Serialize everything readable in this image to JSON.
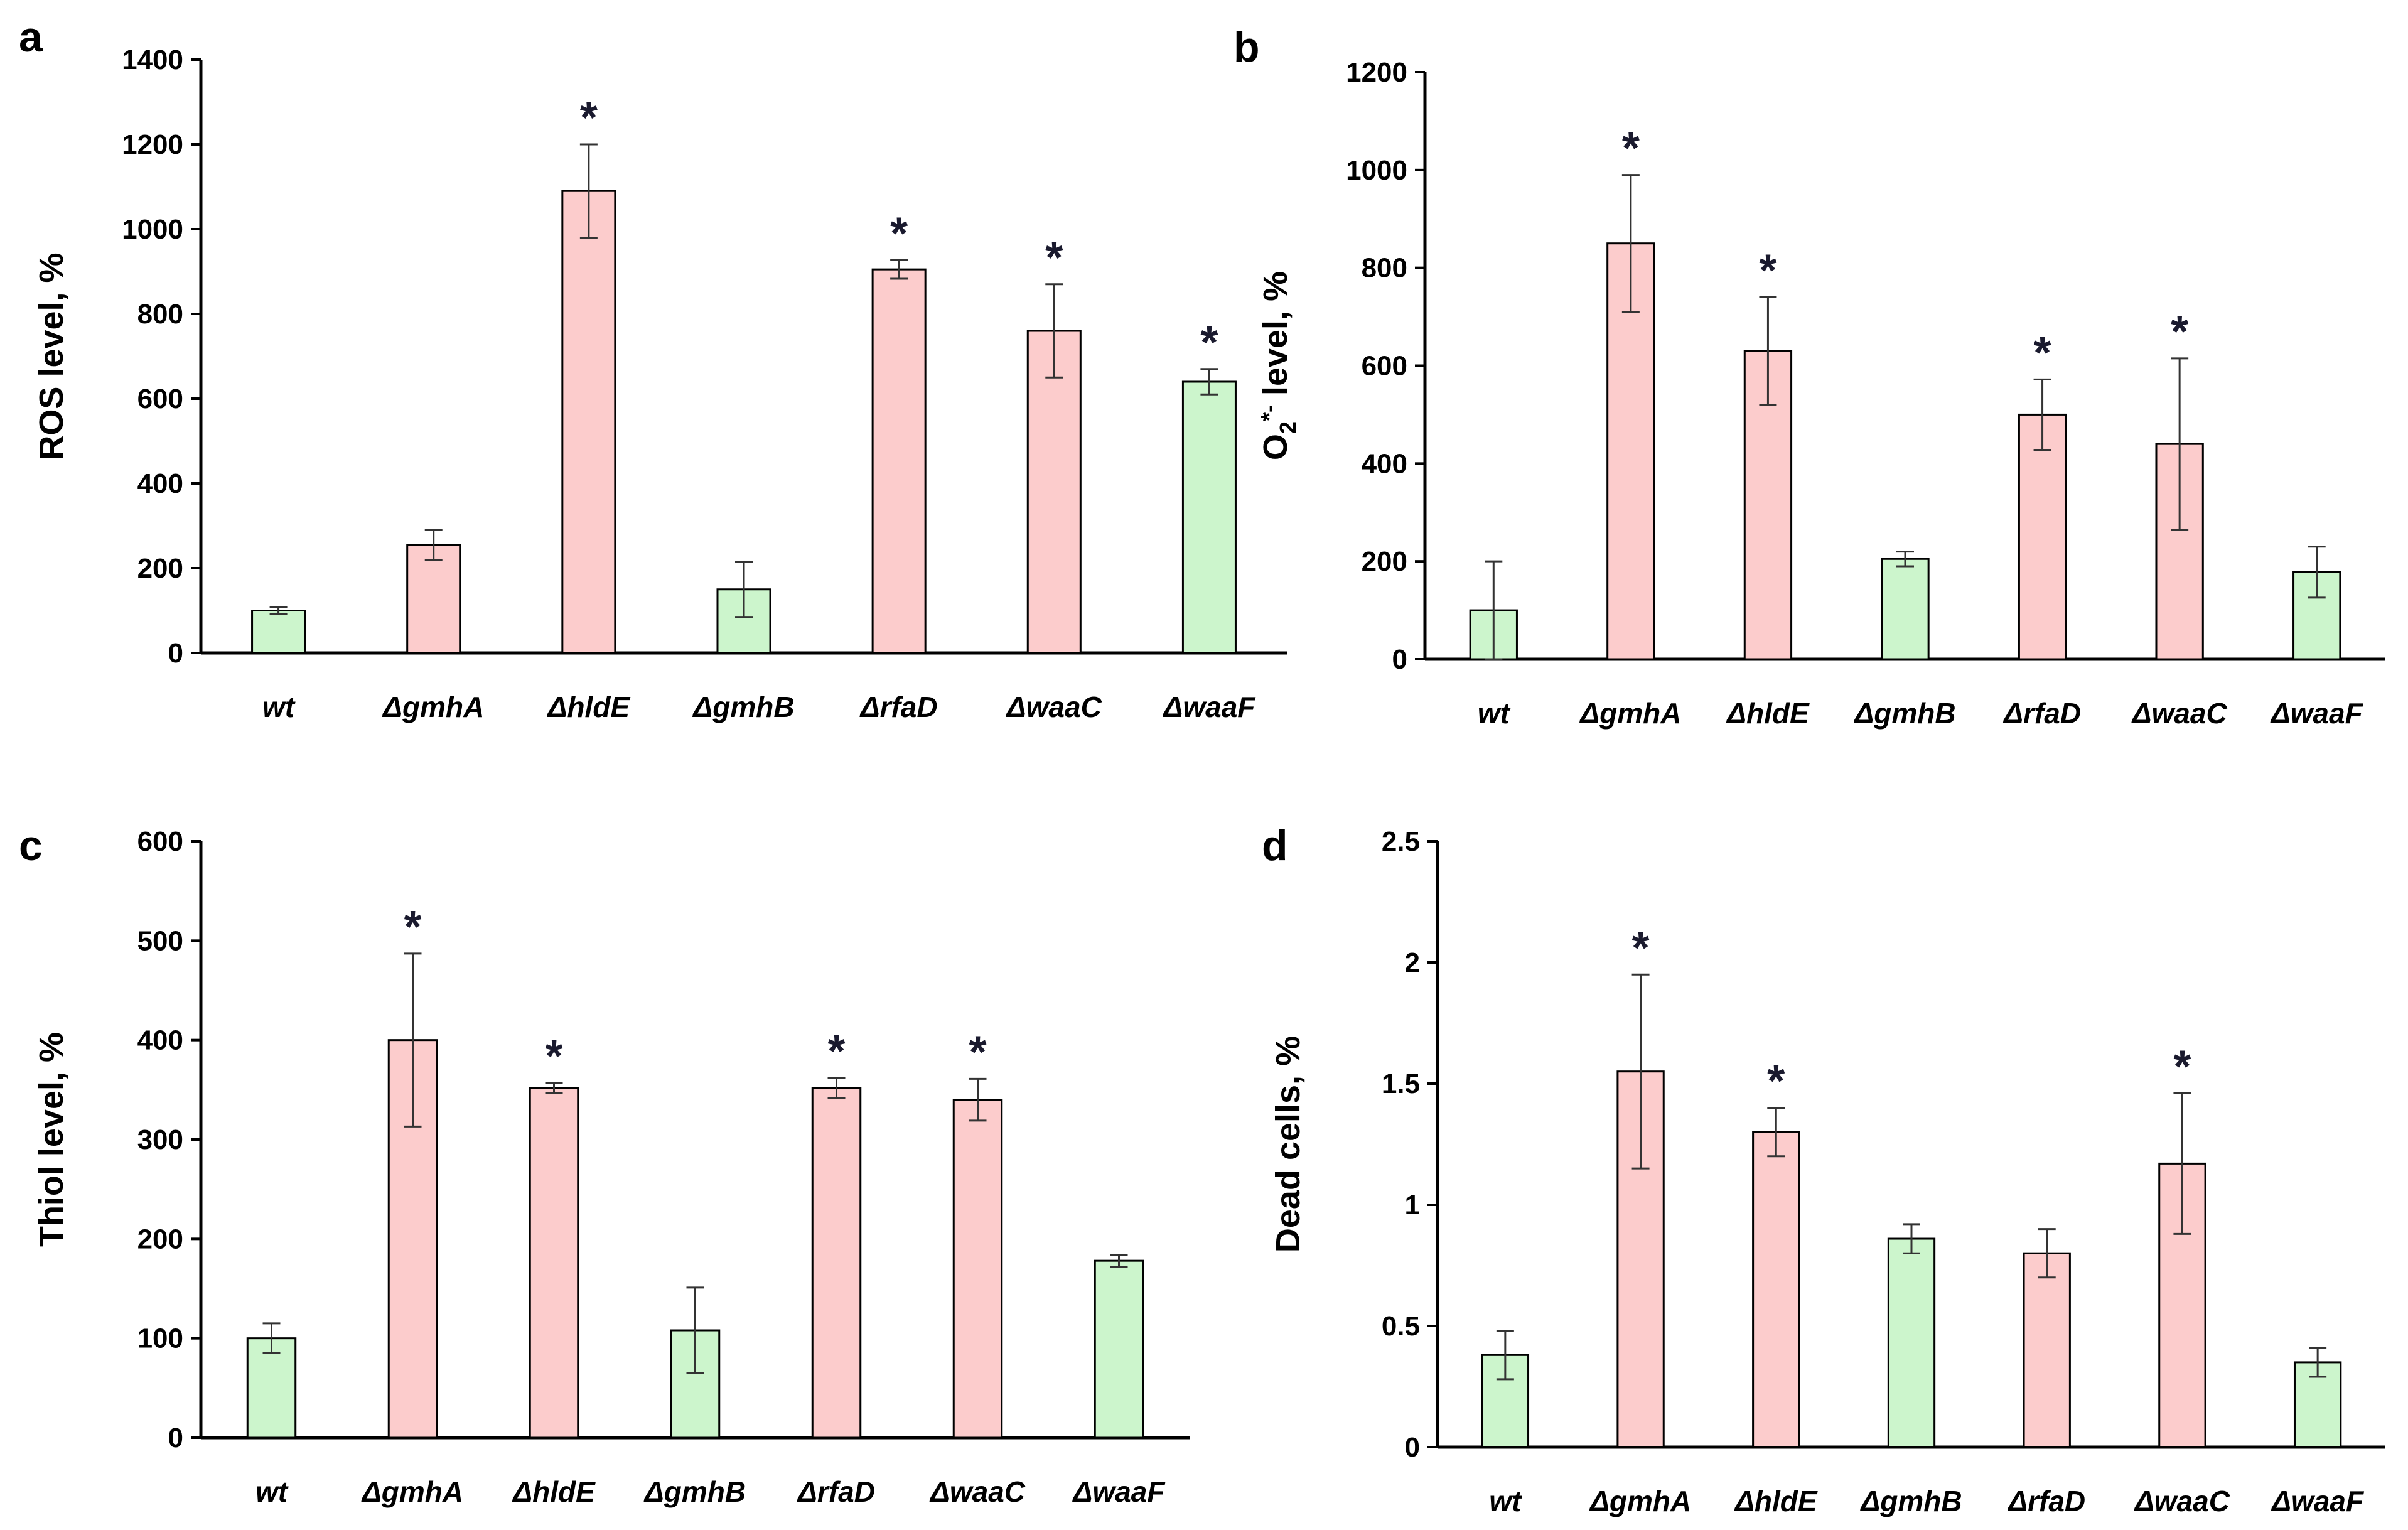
{
  "colors": {
    "green": "#ccf5cc",
    "pink": "#fccccc",
    "axis": "#000000"
  },
  "chart_data": [
    {
      "panel": "a",
      "type": "bar",
      "categories": [
        "wt",
        "ΔgmhA",
        "ΔhldE",
        "ΔgmhB",
        "ΔrfaD",
        "ΔwaaC",
        "ΔwaaF"
      ],
      "values": [
        100,
        255,
        1090,
        150,
        905,
        760,
        640
      ],
      "errors": [
        8,
        35,
        110,
        65,
        22,
        110,
        30
      ],
      "colors": [
        "green",
        "pink",
        "pink",
        "green",
        "pink",
        "pink",
        "green"
      ],
      "significant": [
        false,
        false,
        true,
        false,
        true,
        true,
        true
      ],
      "marker": "*",
      "ylabel": "ROS level, %",
      "ylabel_sub": "",
      "ylabel_tail": "",
      "ylim": [
        0,
        1400
      ],
      "yticks": [
        "0",
        "200",
        "400",
        "600",
        "800",
        "1000",
        "1200",
        "1400"
      ]
    },
    {
      "panel": "b",
      "type": "bar",
      "categories": [
        "wt",
        "ΔgmhA",
        "ΔhldE",
        "ΔgmhB",
        "ΔrfaD",
        "ΔwaaC",
        "ΔwaaF"
      ],
      "values": [
        100,
        850,
        630,
        205,
        500,
        440,
        178
      ],
      "errors": [
        100,
        140,
        110,
        15,
        72,
        175,
        52
      ],
      "colors": [
        "green",
        "pink",
        "pink",
        "green",
        "pink",
        "pink",
        "green"
      ],
      "significant": [
        false,
        true,
        true,
        false,
        true,
        true,
        false
      ],
      "marker": "*",
      "ylabel": "O",
      "ylabel_sub": "2",
      "ylabel_tail": "*- level, %",
      "ylim": [
        0,
        1200
      ],
      "yticks": [
        "0",
        "200",
        "400",
        "600",
        "800",
        "1000",
        "1200"
      ]
    },
    {
      "panel": "c",
      "type": "bar",
      "categories": [
        "wt",
        "ΔgmhA",
        "ΔhldE",
        "ΔgmhB",
        "ΔrfaD",
        "ΔwaaC",
        "ΔwaaF"
      ],
      "values": [
        100,
        400,
        352,
        108,
        352,
        340,
        178
      ],
      "errors": [
        15,
        87,
        5,
        43,
        10,
        21,
        6
      ],
      "colors": [
        "green",
        "pink",
        "pink",
        "green",
        "pink",
        "pink",
        "green"
      ],
      "significant": [
        false,
        true,
        true,
        false,
        true,
        true,
        false
      ],
      "marker": "*",
      "ylabel": "Thiol level, %",
      "ylabel_sub": "",
      "ylabel_tail": "",
      "ylim": [
        0,
        600
      ],
      "yticks": [
        "0",
        "100",
        "200",
        "300",
        "400",
        "500",
        "600"
      ]
    },
    {
      "panel": "d",
      "type": "bar",
      "categories": [
        "wt",
        "ΔgmhA",
        "ΔhldE",
        "ΔgmhB",
        "ΔrfaD",
        "ΔwaaC",
        "ΔwaaF"
      ],
      "values": [
        0.38,
        1.55,
        1.3,
        0.86,
        0.8,
        1.17,
        0.35
      ],
      "errors": [
        0.1,
        0.4,
        0.1,
        0.06,
        0.1,
        0.29,
        0.06
      ],
      "colors": [
        "green",
        "pink",
        "pink",
        "green",
        "pink",
        "pink",
        "green"
      ],
      "significant": [
        false,
        true,
        true,
        false,
        false,
        true,
        false
      ],
      "marker": "*",
      "ylabel": "Dead cells, %",
      "ylabel_sub": "",
      "ylabel_tail": "",
      "ylim": [
        0,
        2.5
      ],
      "yticks": [
        "0",
        "0.5",
        "1",
        "1.5",
        "2",
        "2.5"
      ]
    }
  ]
}
